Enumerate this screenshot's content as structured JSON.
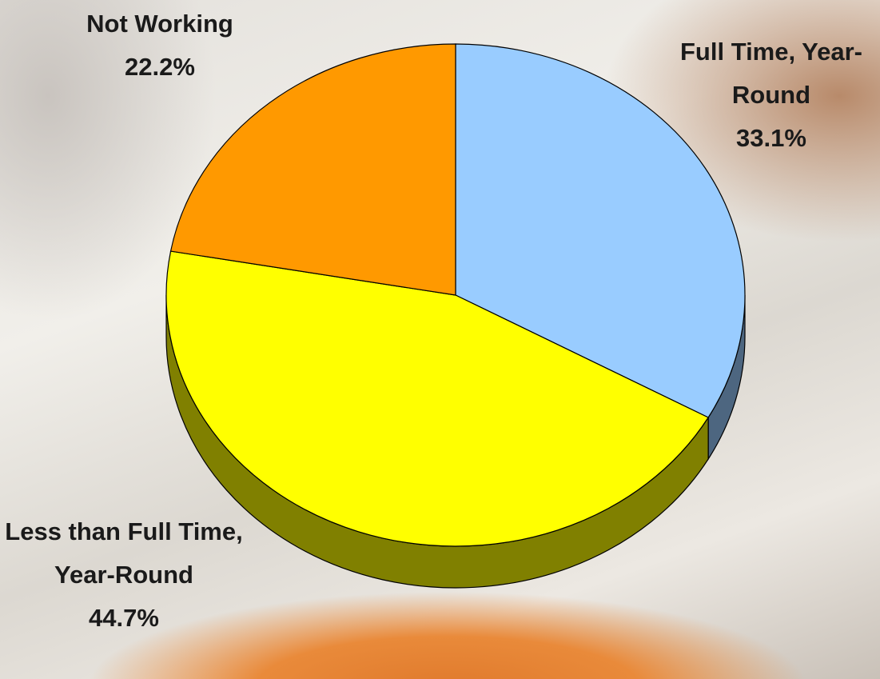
{
  "chart_data": {
    "type": "pie",
    "categories": [
      "Full Time, Year-Round",
      "Less than Full Time, Year-Round",
      "Not Working"
    ],
    "values": [
      33.1,
      44.7,
      22.2
    ],
    "value_labels": [
      "33.1%",
      "44.7%",
      "22.2%"
    ],
    "colors": [
      "#99ccff",
      "#ffff00",
      "#ff9900"
    ],
    "side_colors": [
      "#4d6680",
      "#808000",
      "#804c00"
    ]
  }
}
